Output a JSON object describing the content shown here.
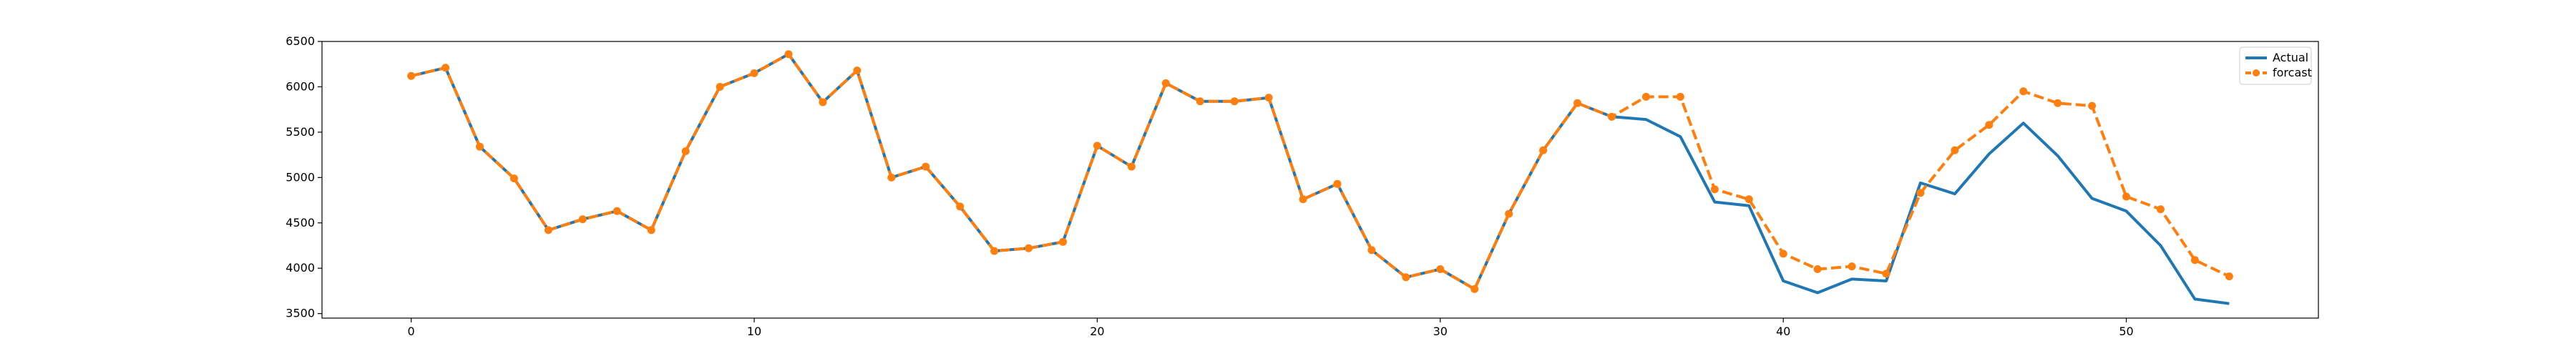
{
  "chart_data": {
    "type": "line",
    "title": "",
    "xlabel": "",
    "ylabel": "",
    "xlim": [
      -2.6,
      55.6
    ],
    "ylim": [
      3450,
      6500
    ],
    "x_ticks": [
      0,
      10,
      20,
      30,
      40,
      50
    ],
    "y_ticks": [
      3500,
      4000,
      4500,
      5000,
      5500,
      6000,
      6500
    ],
    "grid": false,
    "legend_position": "top-right",
    "series": [
      {
        "name": "Actual",
        "color": "#1f77b4",
        "line_style": "solid",
        "marker": "none",
        "x": [
          0,
          1,
          2,
          3,
          4,
          5,
          6,
          7,
          8,
          9,
          10,
          11,
          12,
          13,
          14,
          15,
          16,
          17,
          18,
          19,
          20,
          21,
          22,
          23,
          24,
          25,
          26,
          27,
          28,
          29,
          30,
          31,
          32,
          33,
          34,
          35,
          36,
          37,
          38,
          39,
          40,
          41,
          42,
          43,
          44,
          45,
          46,
          47,
          48,
          49,
          50,
          51,
          52,
          53
        ],
        "values": [
          6120,
          6210,
          5340,
          4990,
          4420,
          4540,
          4630,
          4420,
          5290,
          6000,
          6150,
          6360,
          5830,
          6180,
          5000,
          5120,
          4680,
          4190,
          4220,
          4290,
          5350,
          5120,
          6040,
          5840,
          5840,
          5880,
          4760,
          4930,
          4200,
          3900,
          3990,
          3770,
          4600,
          5300,
          5820,
          5670,
          5640,
          5450,
          4730,
          4690,
          3860,
          3730,
          3880,
          3860,
          4940,
          4820,
          5260,
          5600,
          5240,
          4770,
          4630,
          4250,
          3660,
          3610
        ]
      },
      {
        "name": "forcast",
        "color": "#ff7f0e",
        "line_style": "dashed",
        "marker": "circle",
        "x": [
          0,
          1,
          2,
          3,
          4,
          5,
          6,
          7,
          8,
          9,
          10,
          11,
          12,
          13,
          14,
          15,
          16,
          17,
          18,
          19,
          20,
          21,
          22,
          23,
          24,
          25,
          26,
          27,
          28,
          29,
          30,
          31,
          32,
          33,
          34,
          35,
          36,
          37,
          38,
          39,
          40,
          41,
          42,
          43,
          44,
          45,
          46,
          47,
          48,
          49,
          50,
          51,
          52,
          53
        ],
        "values": [
          6120,
          6210,
          5340,
          4990,
          4420,
          4540,
          4630,
          4420,
          5290,
          6000,
          6150,
          6360,
          5830,
          6180,
          5000,
          5120,
          4680,
          4190,
          4220,
          4290,
          5350,
          5120,
          6040,
          5840,
          5840,
          5880,
          4760,
          4930,
          4200,
          3900,
          3990,
          3770,
          4600,
          5300,
          5820,
          5670,
          5890,
          5890,
          4870,
          4760,
          4160,
          3990,
          4020,
          3940,
          4830,
          5300,
          5580,
          5950,
          5820,
          5790,
          4790,
          4650,
          4090,
          3910
        ]
      }
    ]
  }
}
